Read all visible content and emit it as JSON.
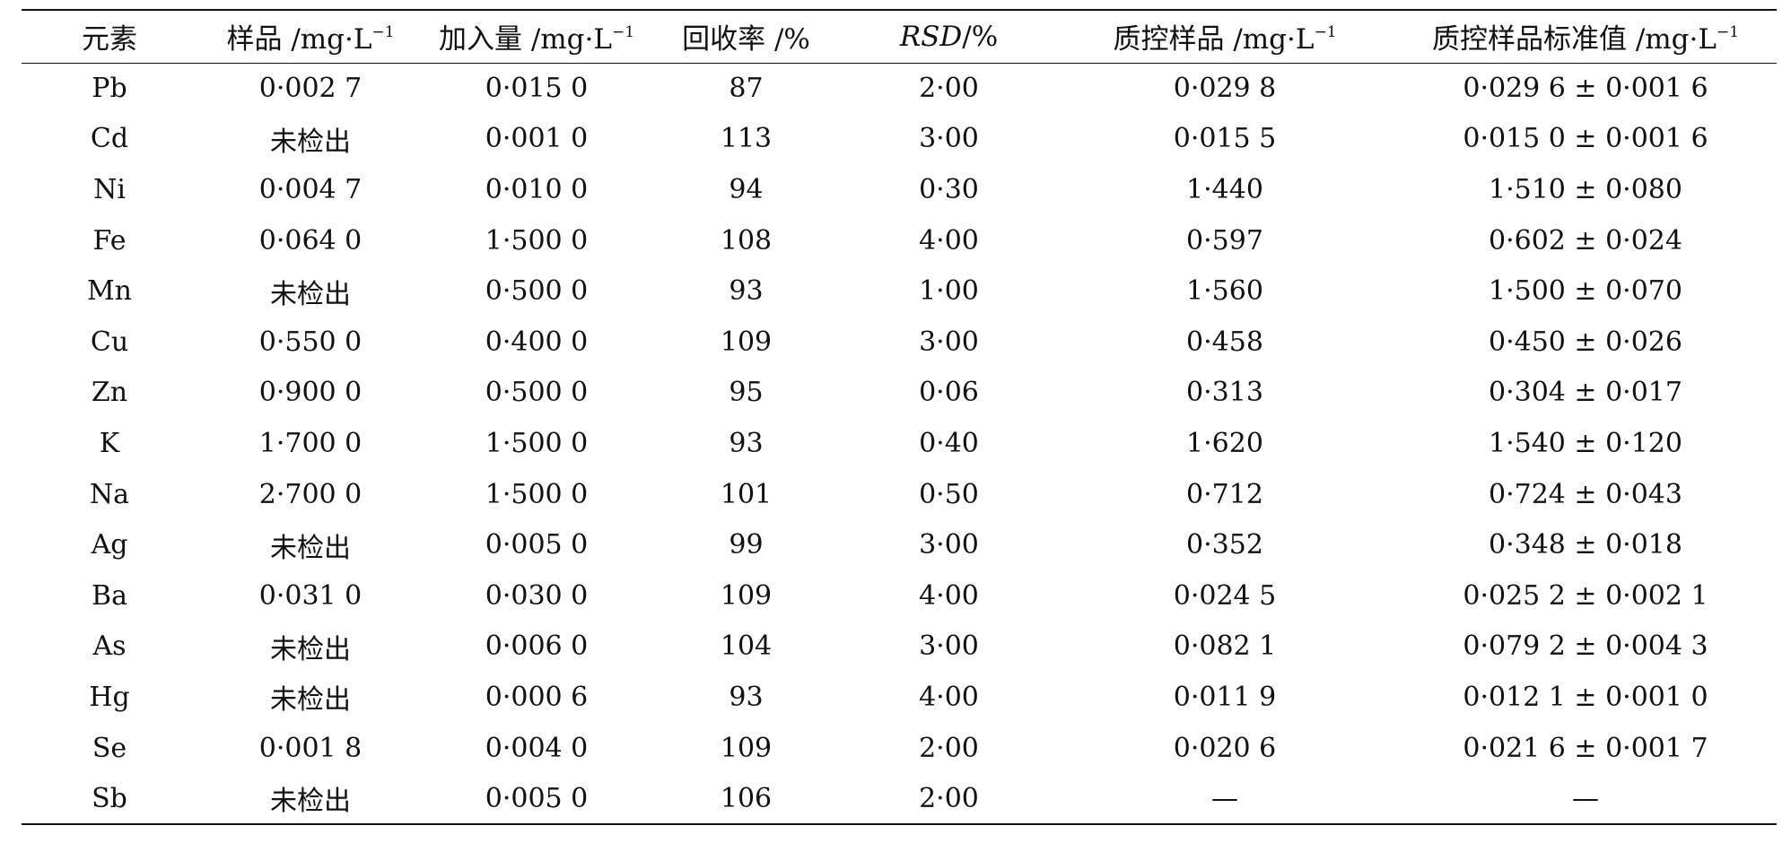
{
  "table": {
    "headers": [
      {
        "text": "元素",
        "sup": ""
      },
      {
        "text": "样品 /mg·L",
        "sup": "−1"
      },
      {
        "text": "加入量 /mg·L",
        "sup": "−1"
      },
      {
        "text": "回收率 /%",
        "sup": ""
      },
      {
        "text_italic": "RSD",
        "text": "/%",
        "sup": ""
      },
      {
        "text": "质控样品 /mg·L",
        "sup": "−1"
      },
      {
        "text": "质控样品标准值 /mg·L",
        "sup": "−1"
      }
    ],
    "rows": [
      [
        "Pb",
        "0·002 7",
        "0·015 0",
        "87",
        "2·00",
        "0·029 8",
        "0·029 6 ± 0·001 6"
      ],
      [
        "Cd",
        "未检出",
        "0·001 0",
        "113",
        "3·00",
        "0·015 5",
        "0·015 0 ± 0·001 6"
      ],
      [
        "Ni",
        "0·004 7",
        "0·010 0",
        "94",
        "0·30",
        "1·440",
        "1·510 ± 0·080"
      ],
      [
        "Fe",
        "0·064 0",
        "1·500 0",
        "108",
        "4·00",
        "0·597",
        "0·602 ± 0·024"
      ],
      [
        "Mn",
        "未检出",
        "0·500 0",
        "93",
        "1·00",
        "1·560",
        "1·500 ± 0·070"
      ],
      [
        "Cu",
        "0·550 0",
        "0·400 0",
        "109",
        "3·00",
        "0·458",
        "0·450 ± 0·026"
      ],
      [
        "Zn",
        "0·900 0",
        "0·500 0",
        "95",
        "0·06",
        "0·313",
        "0·304 ± 0·017"
      ],
      [
        "K",
        "1·700 0",
        "1·500 0",
        "93",
        "0·40",
        "1·620",
        "1·540 ± 0·120"
      ],
      [
        "Na",
        "2·700 0",
        "1·500 0",
        "101",
        "0·50",
        "0·712",
        "0·724 ± 0·043"
      ],
      [
        "Ag",
        "未检出",
        "0·005 0",
        "99",
        "3·00",
        "0·352",
        "0·348 ± 0·018"
      ],
      [
        "Ba",
        "0·031 0",
        "0·030 0",
        "109",
        "4·00",
        "0·024 5",
        "0·025 2 ± 0·002 1"
      ],
      [
        "As",
        "未检出",
        "0·006 0",
        "104",
        "3·00",
        "0·082 1",
        "0·079 2 ± 0·004 3"
      ],
      [
        "Hg",
        "未检出",
        "0·000 6",
        "93",
        "4·00",
        "0·011 9",
        "0·012 1 ± 0·001 0"
      ],
      [
        "Se",
        "0·001 8",
        "0·004 0",
        "109",
        "2·00",
        "0·020 6",
        "0·021 6 ± 0·001 7"
      ],
      [
        "Sb",
        "未检出",
        "0·005 0",
        "106",
        "2·00",
        "—",
        "—"
      ]
    ]
  }
}
